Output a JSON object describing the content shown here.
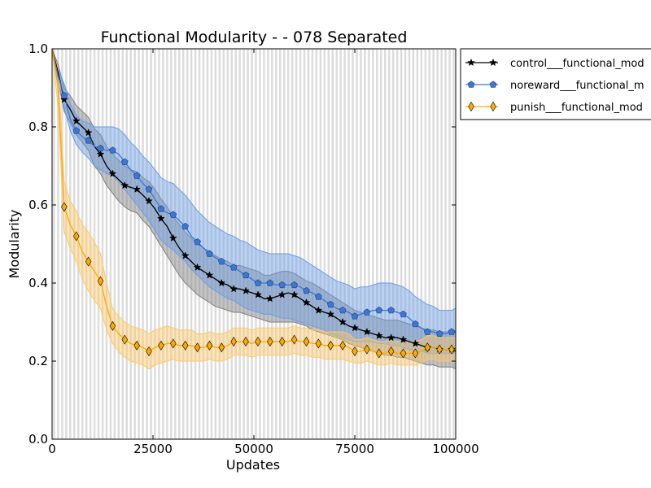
{
  "chart_data": {
    "type": "line",
    "title": "Functional Modularity -  - 078 Separated",
    "xlabel": "Updates",
    "ylabel": "Modularity",
    "xlim": [
      0,
      100000
    ],
    "ylim": [
      0.0,
      1.0
    ],
    "xticks": [
      0,
      25000,
      50000,
      75000,
      100000
    ],
    "xtick_labels": [
      "0",
      "25000",
      "50000",
      "75000",
      "100000"
    ],
    "yticks": [
      0.0,
      0.2,
      0.4,
      0.6,
      0.8,
      1.0
    ],
    "ytick_labels": [
      "0.0",
      "0.2",
      "0.4",
      "0.6",
      "0.8",
      "1.0"
    ],
    "background_bands": true,
    "legend_position": "outside-top-right",
    "series": [
      {
        "name": "control___functional_mod",
        "color": "#000000",
        "fill_color": "#7f7f7f",
        "marker": "star",
        "x": [
          0,
          1500,
          3000,
          4500,
          6000,
          7500,
          9000,
          10500,
          12000,
          13500,
          15000,
          16500,
          18000,
          19500,
          21000,
          22500,
          24000,
          25500,
          27000,
          28500,
          30000,
          31500,
          33000,
          34500,
          36000,
          37500,
          39000,
          40500,
          42000,
          43500,
          45000,
          46500,
          48000,
          49500,
          51000,
          52500,
          54000,
          55500,
          57000,
          58500,
          60000,
          61500,
          63000,
          64500,
          66000,
          67500,
          69000,
          70500,
          72000,
          73500,
          75000,
          76500,
          78000,
          79500,
          81000,
          82500,
          84000,
          85500,
          87000,
          88500,
          90000,
          91500,
          93000,
          94500,
          96000,
          97500,
          99000,
          100000
        ],
        "y": [
          1.0,
          0.94,
          0.87,
          0.845,
          0.815,
          0.8,
          0.785,
          0.75,
          0.73,
          0.7,
          0.68,
          0.665,
          0.65,
          0.645,
          0.64,
          0.625,
          0.61,
          0.59,
          0.565,
          0.545,
          0.515,
          0.49,
          0.47,
          0.455,
          0.44,
          0.43,
          0.42,
          0.41,
          0.4,
          0.395,
          0.385,
          0.385,
          0.38,
          0.375,
          0.37,
          0.36,
          0.36,
          0.365,
          0.37,
          0.375,
          0.37,
          0.36,
          0.35,
          0.34,
          0.33,
          0.325,
          0.32,
          0.31,
          0.3,
          0.29,
          0.285,
          0.28,
          0.275,
          0.27,
          0.265,
          0.26,
          0.26,
          0.26,
          0.255,
          0.25,
          0.245,
          0.24,
          0.235,
          0.235,
          0.23,
          0.23,
          0.23,
          0.225
        ],
        "lower": [
          1.0,
          0.92,
          0.84,
          0.81,
          0.78,
          0.76,
          0.74,
          0.7,
          0.68,
          0.65,
          0.63,
          0.61,
          0.595,
          0.585,
          0.58,
          0.56,
          0.545,
          0.52,
          0.495,
          0.47,
          0.445,
          0.42,
          0.4,
          0.385,
          0.37,
          0.36,
          0.35,
          0.34,
          0.335,
          0.33,
          0.325,
          0.325,
          0.32,
          0.315,
          0.31,
          0.305,
          0.3,
          0.3,
          0.3,
          0.3,
          0.3,
          0.295,
          0.29,
          0.28,
          0.275,
          0.27,
          0.265,
          0.26,
          0.255,
          0.245,
          0.24,
          0.235,
          0.23,
          0.225,
          0.22,
          0.215,
          0.215,
          0.21,
          0.21,
          0.205,
          0.2,
          0.195,
          0.19,
          0.19,
          0.185,
          0.185,
          0.185,
          0.18
        ],
        "upper": [
          1.0,
          0.96,
          0.9,
          0.88,
          0.855,
          0.84,
          0.825,
          0.795,
          0.78,
          0.75,
          0.73,
          0.715,
          0.7,
          0.69,
          0.685,
          0.67,
          0.66,
          0.64,
          0.615,
          0.595,
          0.57,
          0.55,
          0.53,
          0.515,
          0.5,
          0.49,
          0.48,
          0.47,
          0.46,
          0.455,
          0.445,
          0.445,
          0.44,
          0.435,
          0.43,
          0.42,
          0.42,
          0.425,
          0.43,
          0.43,
          0.425,
          0.415,
          0.405,
          0.4,
          0.39,
          0.38,
          0.37,
          0.36,
          0.35,
          0.34,
          0.33,
          0.325,
          0.32,
          0.315,
          0.31,
          0.305,
          0.305,
          0.305,
          0.3,
          0.295,
          0.29,
          0.285,
          0.28,
          0.28,
          0.275,
          0.275,
          0.275,
          0.27
        ]
      },
      {
        "name": "noreward___functional_m",
        "color": "#3a78d6",
        "fill_color": "#6b9ee6",
        "marker": "pentagon",
        "x": [
          0,
          1500,
          3000,
          4500,
          6000,
          7500,
          9000,
          10500,
          12000,
          13500,
          15000,
          16500,
          18000,
          19500,
          21000,
          22500,
          24000,
          25500,
          27000,
          28500,
          30000,
          31500,
          33000,
          34500,
          36000,
          37500,
          39000,
          40500,
          42000,
          43500,
          45000,
          46500,
          48000,
          49500,
          51000,
          52500,
          54000,
          55500,
          57000,
          58500,
          60000,
          61500,
          63000,
          64500,
          66000,
          67500,
          69000,
          70500,
          72000,
          73500,
          75000,
          76500,
          78000,
          79500,
          81000,
          82500,
          84000,
          85500,
          87000,
          88500,
          90000,
          91500,
          93000,
          94500,
          96000,
          97500,
          99000,
          100000
        ],
        "y": [
          1.0,
          0.93,
          0.88,
          0.82,
          0.79,
          0.775,
          0.765,
          0.75,
          0.745,
          0.74,
          0.74,
          0.73,
          0.71,
          0.69,
          0.675,
          0.655,
          0.64,
          0.615,
          0.59,
          0.58,
          0.575,
          0.56,
          0.545,
          0.52,
          0.505,
          0.49,
          0.475,
          0.465,
          0.455,
          0.445,
          0.44,
          0.43,
          0.42,
          0.41,
          0.4,
          0.4,
          0.4,
          0.395,
          0.395,
          0.395,
          0.395,
          0.39,
          0.38,
          0.375,
          0.365,
          0.355,
          0.345,
          0.335,
          0.33,
          0.325,
          0.315,
          0.32,
          0.325,
          0.33,
          0.33,
          0.33,
          0.33,
          0.325,
          0.32,
          0.31,
          0.295,
          0.285,
          0.275,
          0.275,
          0.27,
          0.27,
          0.275,
          0.275
        ],
        "lower": [
          1.0,
          0.91,
          0.85,
          0.79,
          0.755,
          0.735,
          0.72,
          0.7,
          0.69,
          0.68,
          0.675,
          0.66,
          0.64,
          0.62,
          0.6,
          0.58,
          0.56,
          0.535,
          0.51,
          0.495,
          0.485,
          0.47,
          0.455,
          0.435,
          0.42,
          0.405,
          0.39,
          0.38,
          0.37,
          0.36,
          0.355,
          0.345,
          0.335,
          0.33,
          0.325,
          0.32,
          0.32,
          0.315,
          0.31,
          0.31,
          0.305,
          0.3,
          0.295,
          0.29,
          0.285,
          0.28,
          0.27,
          0.265,
          0.26,
          0.255,
          0.25,
          0.25,
          0.25,
          0.25,
          0.245,
          0.245,
          0.24,
          0.24,
          0.235,
          0.23,
          0.225,
          0.225,
          0.22,
          0.22,
          0.22,
          0.22,
          0.22,
          0.22
        ],
        "upper": [
          1.0,
          0.95,
          0.91,
          0.86,
          0.83,
          0.815,
          0.81,
          0.8,
          0.8,
          0.8,
          0.8,
          0.795,
          0.78,
          0.76,
          0.745,
          0.725,
          0.71,
          0.69,
          0.67,
          0.66,
          0.655,
          0.64,
          0.625,
          0.605,
          0.585,
          0.57,
          0.555,
          0.545,
          0.535,
          0.525,
          0.52,
          0.51,
          0.505,
          0.495,
          0.485,
          0.48,
          0.475,
          0.475,
          0.475,
          0.475,
          0.47,
          0.465,
          0.455,
          0.445,
          0.435,
          0.425,
          0.415,
          0.405,
          0.4,
          0.395,
          0.385,
          0.39,
          0.39,
          0.395,
          0.4,
          0.4,
          0.4,
          0.395,
          0.39,
          0.38,
          0.365,
          0.355,
          0.345,
          0.34,
          0.33,
          0.33,
          0.33,
          0.335
        ]
      },
      {
        "name": "punish___functional_mod",
        "color": "#ffaa00",
        "fill_color": "#ffc766",
        "marker": "diamond",
        "x": [
          0,
          1500,
          3000,
          4500,
          6000,
          7500,
          9000,
          10500,
          12000,
          13500,
          15000,
          16500,
          18000,
          19500,
          21000,
          22500,
          24000,
          25500,
          27000,
          28500,
          30000,
          31500,
          33000,
          34500,
          36000,
          37500,
          39000,
          40500,
          42000,
          43500,
          45000,
          46500,
          48000,
          49500,
          51000,
          52500,
          54000,
          55500,
          57000,
          58500,
          60000,
          61500,
          63000,
          64500,
          66000,
          67500,
          69000,
          70500,
          72000,
          73500,
          75000,
          76500,
          78000,
          79500,
          81000,
          82500,
          84000,
          85500,
          87000,
          88500,
          90000,
          91500,
          93000,
          94500,
          96000,
          97500,
          99000,
          100000
        ],
        "y": [
          1.0,
          0.9,
          0.595,
          0.55,
          0.52,
          0.48,
          0.455,
          0.43,
          0.405,
          0.34,
          0.29,
          0.27,
          0.255,
          0.245,
          0.24,
          0.235,
          0.225,
          0.235,
          0.24,
          0.245,
          0.245,
          0.24,
          0.24,
          0.24,
          0.235,
          0.235,
          0.24,
          0.235,
          0.235,
          0.24,
          0.25,
          0.25,
          0.25,
          0.245,
          0.25,
          0.25,
          0.25,
          0.25,
          0.25,
          0.25,
          0.255,
          0.25,
          0.25,
          0.245,
          0.245,
          0.24,
          0.24,
          0.24,
          0.24,
          0.235,
          0.225,
          0.225,
          0.23,
          0.225,
          0.22,
          0.22,
          0.225,
          0.22,
          0.22,
          0.22,
          0.22,
          0.225,
          0.235,
          0.235,
          0.23,
          0.23,
          0.23,
          0.23
        ],
        "lower": [
          1.0,
          0.85,
          0.53,
          0.49,
          0.455,
          0.41,
          0.38,
          0.355,
          0.335,
          0.28,
          0.245,
          0.225,
          0.21,
          0.2,
          0.195,
          0.19,
          0.18,
          0.19,
          0.195,
          0.2,
          0.205,
          0.2,
          0.2,
          0.2,
          0.2,
          0.2,
          0.205,
          0.2,
          0.2,
          0.205,
          0.215,
          0.215,
          0.215,
          0.21,
          0.215,
          0.215,
          0.215,
          0.215,
          0.215,
          0.215,
          0.22,
          0.215,
          0.215,
          0.21,
          0.21,
          0.205,
          0.205,
          0.205,
          0.205,
          0.2,
          0.195,
          0.195,
          0.2,
          0.195,
          0.19,
          0.19,
          0.195,
          0.19,
          0.19,
          0.19,
          0.19,
          0.195,
          0.205,
          0.205,
          0.2,
          0.2,
          0.2,
          0.2
        ],
        "upper": [
          1.0,
          0.95,
          0.66,
          0.61,
          0.585,
          0.55,
          0.53,
          0.505,
          0.475,
          0.4,
          0.335,
          0.315,
          0.3,
          0.29,
          0.285,
          0.28,
          0.27,
          0.28,
          0.285,
          0.29,
          0.285,
          0.28,
          0.28,
          0.28,
          0.27,
          0.27,
          0.275,
          0.27,
          0.27,
          0.275,
          0.285,
          0.285,
          0.285,
          0.28,
          0.285,
          0.285,
          0.285,
          0.285,
          0.285,
          0.285,
          0.29,
          0.285,
          0.285,
          0.28,
          0.28,
          0.275,
          0.275,
          0.275,
          0.275,
          0.27,
          0.255,
          0.255,
          0.26,
          0.255,
          0.25,
          0.25,
          0.255,
          0.25,
          0.25,
          0.25,
          0.25,
          0.255,
          0.265,
          0.265,
          0.26,
          0.26,
          0.26,
          0.26
        ]
      }
    ]
  }
}
